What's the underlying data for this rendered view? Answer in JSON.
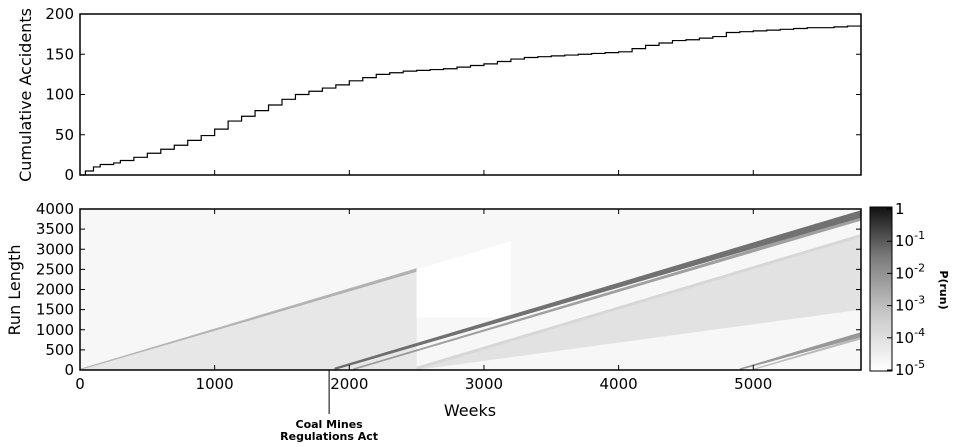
{
  "chart_data": [
    {
      "type": "line",
      "panel": "top",
      "title": "",
      "xlabel": "",
      "ylabel": "Cumulative Accidents",
      "xlim": [
        0,
        5800
      ],
      "ylim": [
        0,
        200
      ],
      "y_ticks": [
        0,
        50,
        100,
        150,
        200
      ],
      "grid": false,
      "series": [
        {
          "x": [
            0,
            40,
            100,
            150,
            250,
            300,
            400,
            500,
            600,
            700,
            800,
            900,
            1000,
            1100,
            1200,
            1300,
            1400,
            1500,
            1600,
            1700,
            1800,
            1900,
            2000,
            2100,
            2200,
            2300,
            2400,
            2500,
            2600,
            2700,
            2800,
            2900,
            3000,
            3100,
            3200,
            3300,
            3400,
            3500,
            3600,
            3700,
            3800,
            3900,
            4000,
            4100,
            4200,
            4300,
            4400,
            4500,
            4600,
            4700,
            4800,
            4900,
            5000,
            5100,
            5200,
            5300,
            5400,
            5500,
            5600,
            5700,
            5800
          ],
          "y": [
            0,
            5,
            10,
            13,
            15,
            18,
            22,
            27,
            32,
            37,
            43,
            49,
            57,
            67,
            73,
            80,
            87,
            94,
            100,
            104,
            108,
            112,
            117,
            121,
            125,
            127,
            129,
            130,
            131,
            132,
            134,
            136,
            138,
            141,
            144,
            146,
            147,
            148,
            149,
            150,
            151,
            152,
            153,
            157,
            161,
            164,
            167,
            168,
            170,
            172,
            177,
            178,
            179,
            180,
            181,
            182,
            183,
            183,
            184,
            185,
            186
          ]
        }
      ]
    },
    {
      "type": "heatmap",
      "panel": "bottom",
      "title": "",
      "xlabel": "Weeks",
      "ylabel": "Run Length",
      "xlim": [
        0,
        5800
      ],
      "ylim": [
        0,
        4000
      ],
      "x_ticks": [
        0,
        1000,
        2000,
        3000,
        4000,
        5000
      ],
      "y_ticks": [
        0,
        500,
        1000,
        1500,
        2000,
        2500,
        3000,
        3500,
        4000
      ],
      "grid": false,
      "colorbar": {
        "label": "P(run)",
        "scale": "log",
        "ticks": [
          {
            "base": "1",
            "exp": ""
          },
          {
            "base": "10",
            "exp": "-1"
          },
          {
            "base": "10",
            "exp": "-2"
          },
          {
            "base": "10",
            "exp": "-3"
          },
          {
            "base": "10",
            "exp": "-4"
          },
          {
            "base": "10",
            "exp": "-5"
          }
        ],
        "colors": [
          "#111111",
          "#ffffff"
        ]
      },
      "description_of_structure": [
        {
          "from_week": 0,
          "slope": 1,
          "intensity": "light",
          "until_week": 2500
        },
        {
          "from_week": 1890,
          "slope": 1,
          "intensity": "dark",
          "until_week": 5800
        },
        {
          "from_week": 2500,
          "slope": 1,
          "intensity": "medium",
          "until_week": 5800
        },
        {
          "from_week": 4900,
          "slope": 1,
          "intensity": "medium",
          "until_week": 5800
        }
      ],
      "annotations": [
        {
          "x": 1850,
          "lines": [
            "Coal Mines",
            "Regulations Act"
          ]
        }
      ]
    }
  ]
}
